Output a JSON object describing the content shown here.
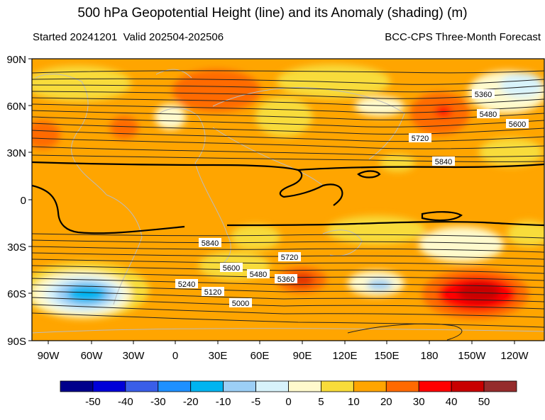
{
  "title": "500 hPa Geopotential Height (line) and its Anomaly (shading) (m)",
  "subtitle_left": "Started 20241201  Valid 202504-202506",
  "subtitle_right": "BCC-CPS Three-Month Forecast",
  "lat_labels": [
    "90N",
    "60N",
    "30N",
    "0",
    "30S",
    "60S",
    "90S"
  ],
  "lon_labels": [
    "90W",
    "60W",
    "30W",
    "0",
    "30E",
    "60E",
    "90E",
    "120E",
    "150E",
    "180",
    "150W",
    "120W"
  ],
  "contour_labels": [
    "5360",
    "5480",
    "5600",
    "5720",
    "5840",
    "5840",
    "5600",
    "5480",
    "5720",
    "5360",
    "5240",
    "5120",
    "5000"
  ],
  "colorbar": {
    "labels": [
      "-50",
      "-40",
      "-30",
      "-20",
      "-10",
      "-5",
      "0",
      "5",
      "10",
      "20",
      "30",
      "40",
      "50"
    ],
    "colors": [
      "#00008b",
      "#0000d8",
      "#3a5ee8",
      "#1e90ff",
      "#00b4f0",
      "#9ccff6",
      "#d8f3fb",
      "#fffacd",
      "#f8dc3a",
      "#ffa500",
      "#ff6a00",
      "#ff0000",
      "#c80000",
      "#952c2c"
    ]
  }
}
